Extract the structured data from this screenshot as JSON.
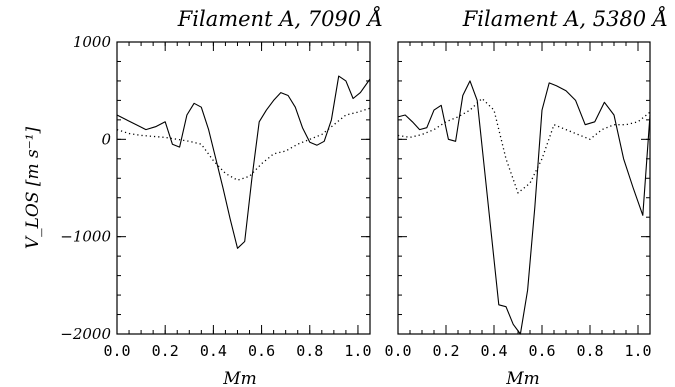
{
  "chart_data": [
    {
      "type": "line",
      "title": "Filament A, 7090 Å",
      "xlabel": "Mm",
      "ylabel": "V_LOS [m s⁻¹]",
      "xlim": [
        0.0,
        1.05
      ],
      "ylim": [
        -2000,
        1000
      ],
      "x_ticks": [
        "0.0",
        "0.2",
        "0.4",
        "0.6",
        "0.8",
        "1.0"
      ],
      "y_ticks": [
        "1000",
        "0",
        "−1000",
        "−2000"
      ],
      "grid": false,
      "series": [
        {
          "style": "solid",
          "x": [
            0.0,
            0.04,
            0.08,
            0.12,
            0.16,
            0.2,
            0.23,
            0.26,
            0.29,
            0.32,
            0.35,
            0.38,
            0.41,
            0.44,
            0.47,
            0.5,
            0.53,
            0.56,
            0.59,
            0.62,
            0.65,
            0.68,
            0.71,
            0.74,
            0.77,
            0.8,
            0.83,
            0.86,
            0.89,
            0.92,
            0.95,
            0.98,
            1.01,
            1.05
          ],
          "y": [
            250,
            200,
            150,
            100,
            130,
            180,
            -50,
            -80,
            250,
            370,
            330,
            100,
            -200,
            -500,
            -820,
            -1120,
            -1050,
            -400,
            180,
            300,
            400,
            480,
            450,
            330,
            120,
            -30,
            -60,
            -20,
            200,
            650,
            600,
            420,
            480,
            620
          ]
        },
        {
          "style": "dotted",
          "x": [
            0.0,
            0.05,
            0.1,
            0.15,
            0.2,
            0.25,
            0.3,
            0.35,
            0.4,
            0.45,
            0.5,
            0.55,
            0.6,
            0.65,
            0.7,
            0.75,
            0.8,
            0.85,
            0.9,
            0.95,
            1.0,
            1.05
          ],
          "y": [
            100,
            60,
            40,
            30,
            20,
            0,
            -20,
            -50,
            -220,
            -350,
            -420,
            -380,
            -250,
            -150,
            -120,
            -50,
            0,
            50,
            150,
            250,
            280,
            320
          ]
        }
      ]
    },
    {
      "type": "line",
      "title": "Filament A, 5380 Å",
      "xlabel": "Mm",
      "xlim": [
        0.0,
        1.05
      ],
      "ylim": [
        -2000,
        1000
      ],
      "x_ticks": [
        "0.0",
        "0.2",
        "0.4",
        "0.6",
        "0.8",
        "1.0"
      ],
      "grid": false,
      "series": [
        {
          "style": "solid",
          "x": [
            0.0,
            0.03,
            0.06,
            0.09,
            0.12,
            0.15,
            0.18,
            0.21,
            0.24,
            0.27,
            0.3,
            0.33,
            0.36,
            0.39,
            0.42,
            0.45,
            0.48,
            0.51,
            0.54,
            0.57,
            0.6,
            0.63,
            0.66,
            0.7,
            0.74,
            0.78,
            0.82,
            0.86,
            0.9,
            0.94,
            0.98,
            1.02,
            1.05
          ],
          "y": [
            230,
            250,
            180,
            100,
            120,
            300,
            350,
            0,
            -20,
            450,
            600,
            400,
            -300,
            -1000,
            -1700,
            -1720,
            -1900,
            -2000,
            -1550,
            -700,
            300,
            580,
            550,
            500,
            400,
            150,
            180,
            380,
            250,
            -200,
            -500,
            -780,
            250
          ]
        },
        {
          "style": "dotted",
          "x": [
            0.0,
            0.05,
            0.1,
            0.15,
            0.2,
            0.25,
            0.3,
            0.35,
            0.4,
            0.45,
            0.5,
            0.55,
            0.6,
            0.65,
            0.7,
            0.75,
            0.8,
            0.85,
            0.9,
            0.95,
            1.0,
            1.05
          ],
          "y": [
            40,
            20,
            50,
            100,
            180,
            230,
            300,
            420,
            300,
            -200,
            -550,
            -450,
            -200,
            150,
            100,
            50,
            0,
            100,
            150,
            150,
            180,
            280
          ]
        }
      ]
    }
  ]
}
